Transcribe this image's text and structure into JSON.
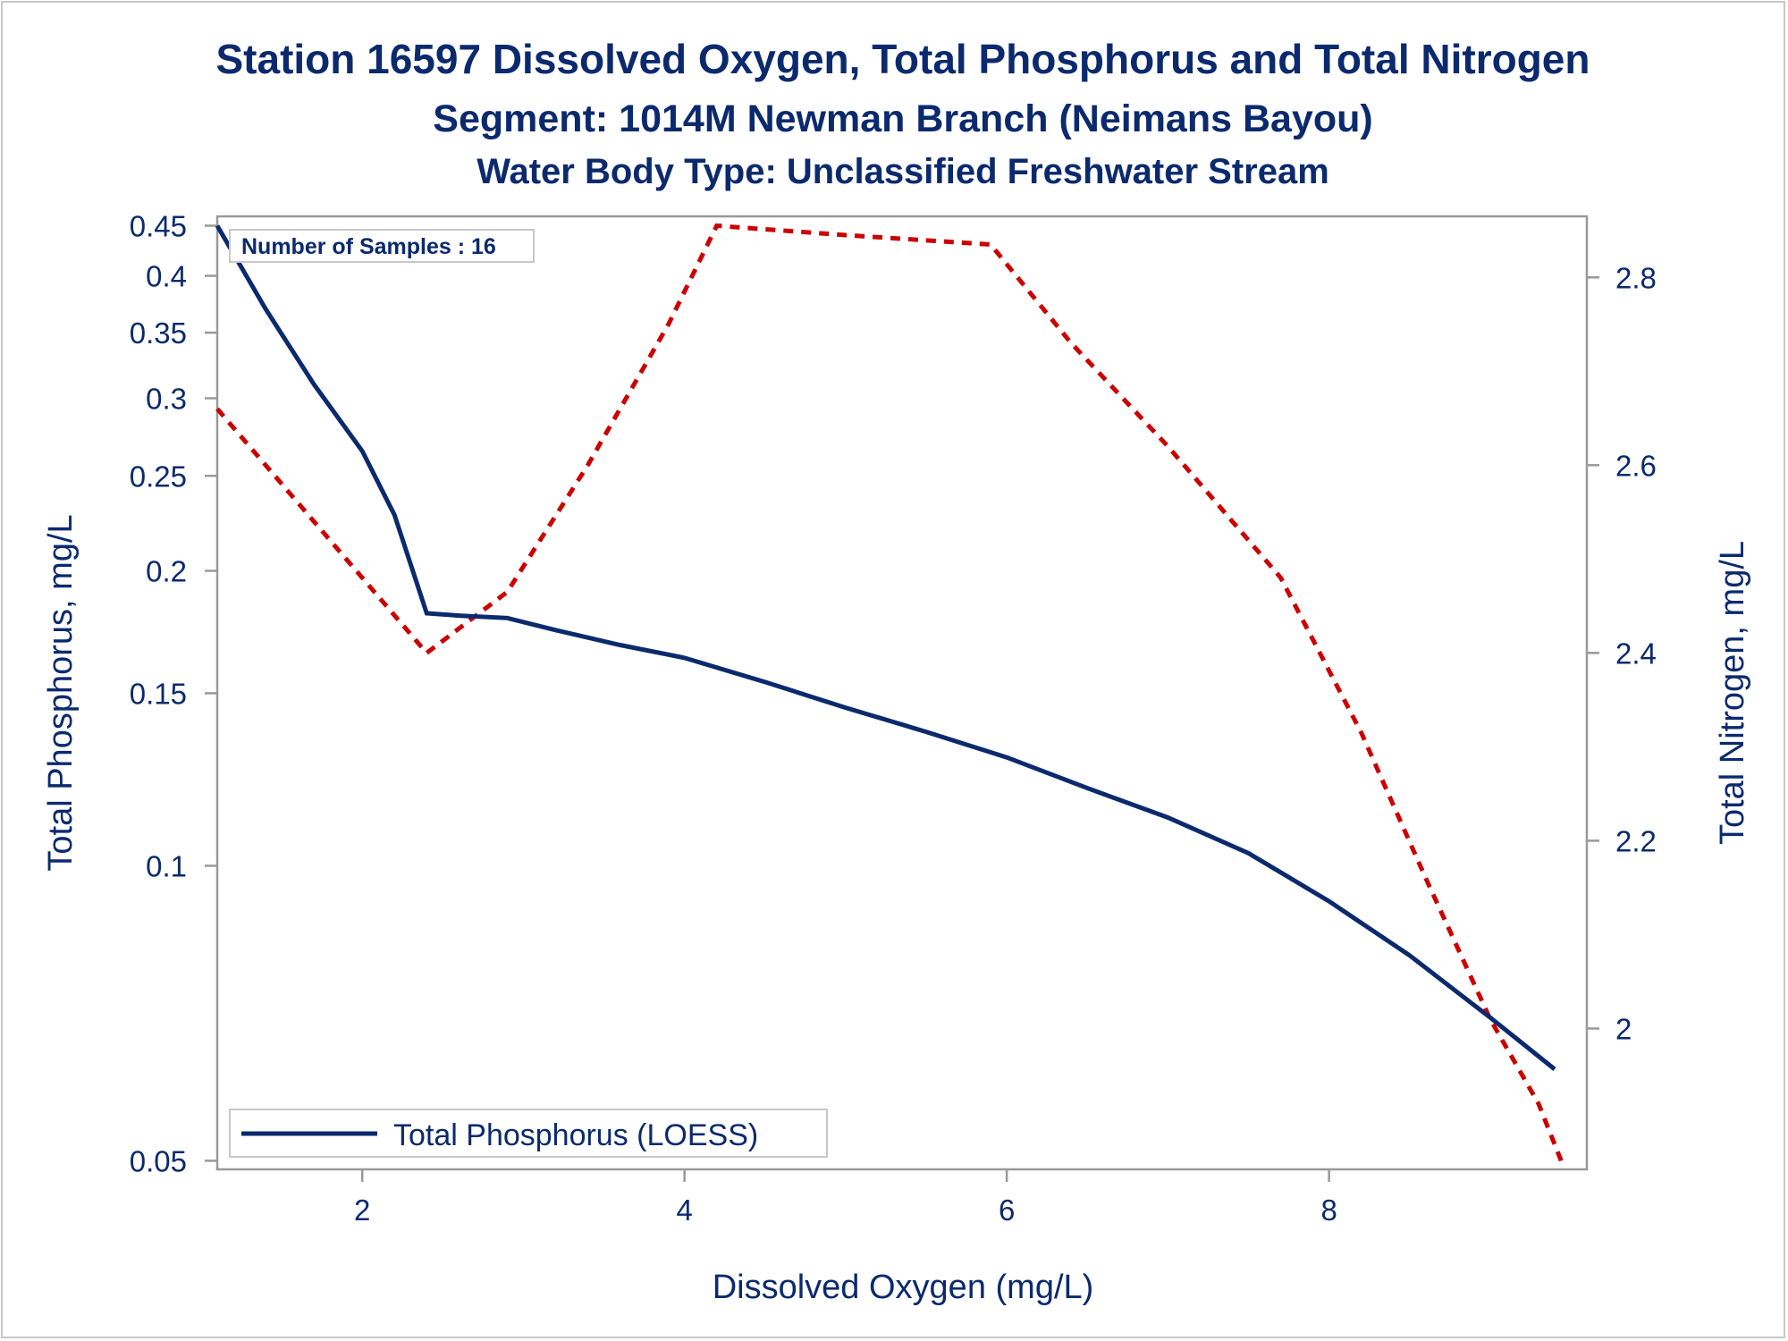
{
  "titles": {
    "line1": "Station 16597  Dissolved Oxygen, Total Phosphorus and Total Nitrogen",
    "line2": "Segment: 1014M  Newman Branch (Neimans Bayou)",
    "line3": "Water Body Type: Unclassified Freshwater Stream"
  },
  "annotation": "Number of Samples : 16",
  "legend": {
    "tp_label": "Total Phosphorus (LOESS)"
  },
  "colors": {
    "tp": "#0b2a6e",
    "tn": "#cc0000",
    "text": "#0b2a6e",
    "frame": "#999999"
  },
  "chart_data": {
    "type": "line",
    "xlabel": "Dissolved Oxygen (mg/L)",
    "ylabel": "Total Phosphorus, mg/L",
    "y2label": "Total Nitrogen, mg/L",
    "xlim": [
      1.1,
      9.6
    ],
    "ylim": [
      0.049,
      0.46
    ],
    "yscale": "log",
    "y2lim": [
      1.85,
      2.865
    ],
    "xticks": [
      2,
      4,
      6,
      8
    ],
    "yticks": [
      0.05,
      0.1,
      0.15,
      0.2,
      0.25,
      0.3,
      0.35,
      0.4,
      0.45
    ],
    "y2ticks": [
      2,
      2.2,
      2.4,
      2.6,
      2.8
    ],
    "grid": false,
    "legend_position": "bottom-left",
    "series": [
      {
        "name": "Total Phosphorus (LOESS)",
        "axis": "left",
        "style": "solid",
        "x": [
          1.1,
          1.4,
          1.7,
          2.0,
          2.2,
          2.4,
          2.6,
          2.9,
          3.2,
          3.6,
          4.0,
          4.5,
          5.0,
          5.5,
          6.0,
          6.5,
          7.0,
          7.5,
          8.0,
          8.5,
          9.0,
          9.4
        ],
        "y": [
          0.45,
          0.37,
          0.31,
          0.265,
          0.228,
          0.181,
          0.18,
          0.179,
          0.174,
          0.168,
          0.163,
          0.154,
          0.145,
          0.137,
          0.129,
          0.12,
          0.112,
          0.103,
          0.092,
          0.081,
          0.07,
          0.062
        ]
      },
      {
        "axis": "right",
        "style": "dashed",
        "x": [
          1.1,
          1.5,
          2.0,
          2.4,
          2.9,
          3.4,
          3.9,
          4.2,
          5.0,
          5.9,
          6.4,
          7.0,
          7.7,
          8.2,
          8.6,
          9.0,
          9.3,
          9.45
        ],
        "y": [
          2.66,
          2.58,
          2.48,
          2.4,
          2.465,
          2.6,
          2.75,
          2.855,
          2.845,
          2.835,
          2.73,
          2.62,
          2.48,
          2.315,
          2.16,
          2.01,
          1.92,
          1.855
        ]
      }
    ]
  }
}
